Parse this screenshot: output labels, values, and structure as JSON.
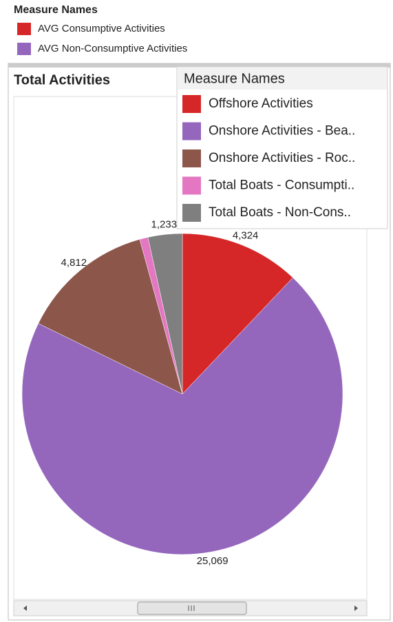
{
  "top_legend": {
    "title": "Measure Names",
    "items": [
      {
        "name": "AVG Consumptive Activities",
        "color": "#d62728"
      },
      {
        "name": "AVG Non-Consumptive Activities",
        "color": "#9467bd"
      }
    ]
  },
  "chart_data": {
    "type": "pie",
    "title": "Total Activities",
    "legend_title": "Measure Names",
    "categories": [
      "Offshore Activities",
      "Onshore Activities - Bea..",
      "Onshore Activities - Roc..",
      "Total Boats - Consumpti..",
      "Total Boats - Non-Cons.."
    ],
    "values": [
      4324,
      25069,
      4812,
      300,
      1233
    ],
    "value_labels": [
      "4,324",
      "25,069",
      "4,812",
      null,
      "1,233"
    ],
    "colors": [
      "#d62728",
      "#9467bd",
      "#8c564b",
      "#e377c2",
      "#7f7f7f"
    ]
  }
}
